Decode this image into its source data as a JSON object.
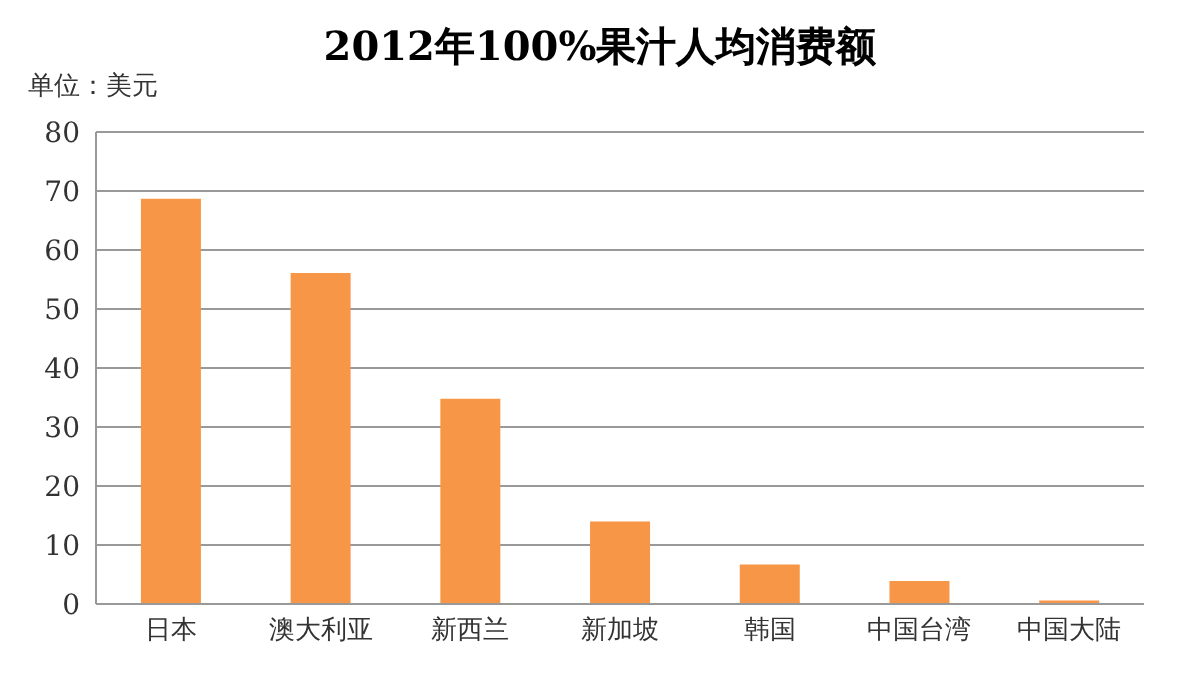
{
  "chart_data": {
    "type": "bar",
    "title": "2012年100%果汁人均消费额",
    "annotations": [
      "单位：美元"
    ],
    "categories": [
      "日本",
      "澳大利亚",
      "新西兰",
      "新加坡",
      "韩国",
      "中国台湾",
      "中国大陆"
    ],
    "values": [
      68.7,
      56.1,
      34.8,
      14,
      6.7,
      3.9,
      0.6
    ],
    "color": "#f79646",
    "ylim": [
      0,
      80
    ],
    "yticks": [
      0,
      10,
      20,
      30,
      40,
      50,
      60,
      70,
      80
    ],
    "grid": "y"
  }
}
